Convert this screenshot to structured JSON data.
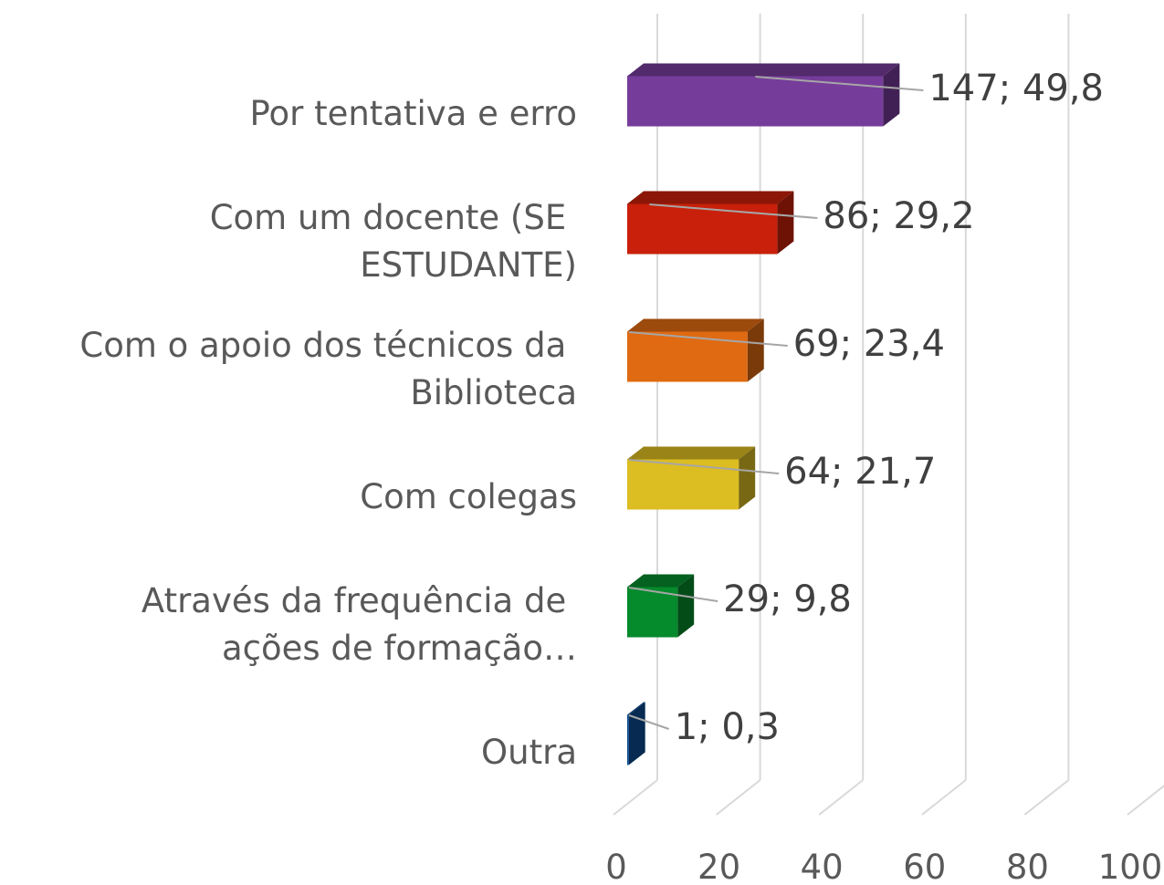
{
  "chart_data": {
    "type": "bar3d_horizontal",
    "categories": [
      "Por tentativa e erro",
      "Com um docente (SE ESTUDANTE)",
      "Com o apoio dos técnicos da Biblioteca",
      "Com colegas",
      "Através da frequência de ações de formação…",
      "Outra"
    ],
    "values": [
      49.8,
      29.2,
      23.4,
      21.7,
      9.8,
      0.3
    ],
    "value_labels": [
      "147; 49,8",
      "86; 29,2",
      "69; 23,4",
      "64; 21,7",
      "29; 9,8",
      "1; 0,3"
    ],
    "colors": [
      "#763c9a",
      "#c8200a",
      "#e06a12",
      "#dcbd22",
      "#058a2c",
      "#0a4c94"
    ],
    "xlim": [
      0,
      100
    ],
    "xticks": [
      0,
      20,
      40,
      60,
      80,
      100
    ],
    "grid": true
  }
}
